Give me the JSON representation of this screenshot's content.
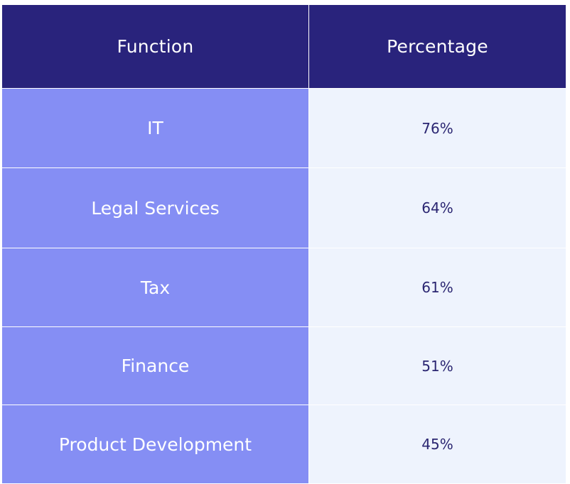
{
  "colors": {
    "header_bg": "#29237c",
    "function_bg": "#858ef4",
    "percentage_bg": "#eef3fd",
    "percentage_text": "#2a2571"
  },
  "table": {
    "headers": [
      "Function",
      "Percentage"
    ],
    "rows": [
      {
        "function": "IT",
        "percentage": "76%"
      },
      {
        "function": "Legal Services",
        "percentage": "64%"
      },
      {
        "function": "Tax",
        "percentage": "61%"
      },
      {
        "function": "Finance",
        "percentage": "51%"
      },
      {
        "function": "Product Development",
        "percentage": "45%"
      }
    ]
  },
  "chart_data": {
    "type": "table",
    "columns": [
      "Function",
      "Percentage"
    ],
    "categories": [
      "IT",
      "Legal Services",
      "Tax",
      "Finance",
      "Product Development"
    ],
    "values": [
      76,
      64,
      61,
      51,
      45
    ],
    "unit": "%"
  }
}
